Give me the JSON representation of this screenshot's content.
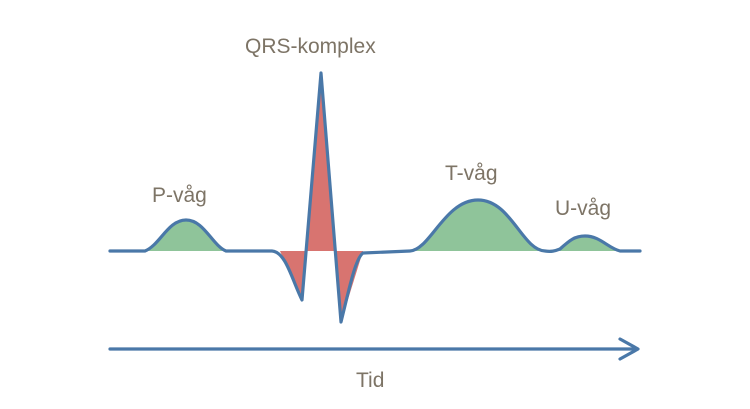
{
  "labels": {
    "p_wave": "P-våg",
    "qrs_complex": "QRS-komplex",
    "t_wave": "T-våg",
    "u_wave": "U-våg",
    "time_axis": "Tid"
  },
  "colors": {
    "trace": "#4a78a8",
    "wave_fill": "#8fc49a",
    "qrs_fill": "#d87470",
    "label_text": "#7d7466"
  }
}
